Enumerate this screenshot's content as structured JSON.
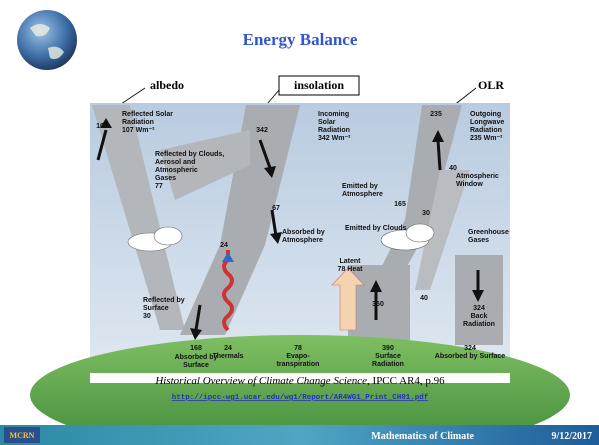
{
  "header": {
    "title": "Energy Balance"
  },
  "callouts": [
    "albedo",
    "insolation",
    "OLR"
  ],
  "figure": {
    "labels": [
      {
        "lines": [
          "107"
        ]
      },
      {
        "lines": [
          "Reflected Solar",
          "Radiation",
          "107 Wm⁻²"
        ]
      },
      {
        "lines": [
          "342"
        ]
      },
      {
        "lines": [
          "Incoming",
          "Solar",
          "Radiation",
          "342 Wm⁻²"
        ]
      },
      {
        "lines": [
          "235"
        ]
      },
      {
        "lines": [
          "Outgoing",
          "Longwave",
          "Radiation",
          "235 Wm⁻²"
        ]
      },
      {
        "lines": [
          "Reflected by Clouds,",
          "Aerosol and",
          "Atmospheric",
          "Gases",
          "77"
        ]
      },
      {
        "lines": [
          "Emitted by",
          "Atmosphere"
        ]
      },
      {
        "lines": [
          "165"
        ]
      },
      {
        "lines": [
          "30"
        ]
      },
      {
        "lines": [
          "40"
        ]
      },
      {
        "lines": [
          "Atmospheric",
          "Window"
        ]
      },
      {
        "lines": [
          "Emitted by Clouds"
        ]
      },
      {
        "lines": [
          "Greenhouse",
          "Gases"
        ]
      },
      {
        "lines": [
          "67"
        ]
      },
      {
        "lines": [
          "Absorbed by",
          "Atmosphere"
        ]
      },
      {
        "lines": [
          "Latent",
          "78 Heat"
        ]
      },
      {
        "lines": [
          "24"
        ]
      },
      {
        "lines": [
          "350"
        ]
      },
      {
        "lines": [
          "40"
        ]
      },
      {
        "lines": [
          "324",
          "Back",
          "Radiation"
        ]
      },
      {
        "lines": [
          "Reflected by",
          "Surface",
          "30"
        ]
      },
      {
        "lines": [
          "168"
        ]
      },
      {
        "lines": [
          "Absorbed by",
          "Surface"
        ]
      },
      {
        "lines": [
          "24",
          "Thermals"
        ]
      },
      {
        "lines": [
          "78",
          "Evapo-",
          "transpiration"
        ]
      },
      {
        "lines": [
          "390",
          "Surface",
          "Radiation"
        ]
      },
      {
        "lines": [
          "324",
          "Absorbed by Surface"
        ]
      }
    ]
  },
  "caption": {
    "title": "Historical Overview of Climate Change Science",
    "source": ", IPCC AR4, p.96",
    "url": "http://ipcc-wg1.ucar.edu/wg1/Report/AR4WG1_Print_CH01.pdf"
  },
  "footer": {
    "logo": "MCRN",
    "text": "Mathematics of Climate",
    "date": "9/12/2017"
  }
}
